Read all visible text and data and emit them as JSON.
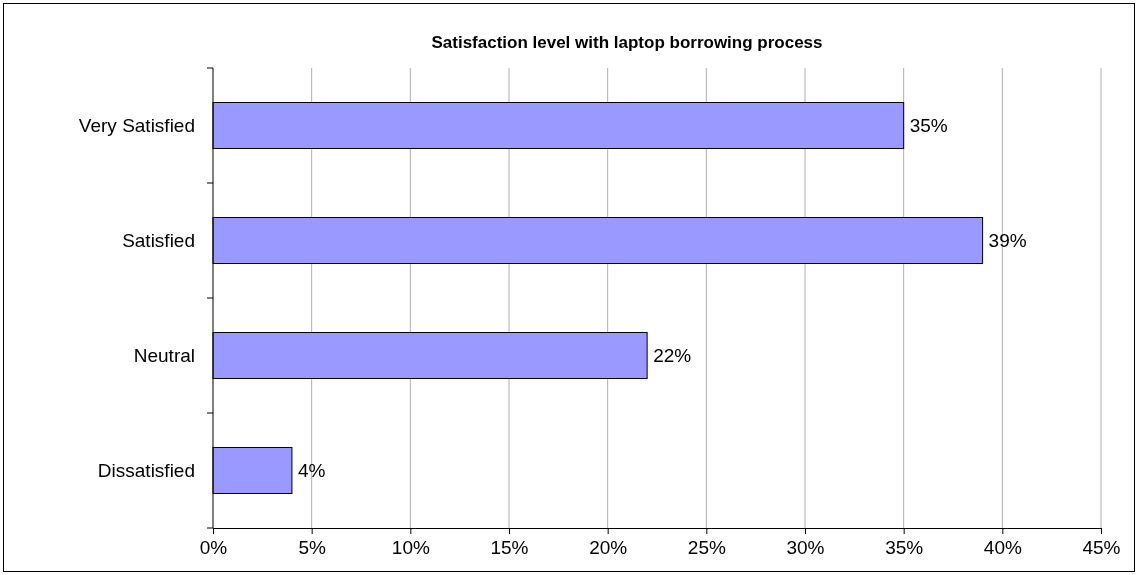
{
  "chart_data": {
    "type": "bar",
    "orientation": "horizontal",
    "title": "Satisfaction level with laptop borrowing process",
    "categories": [
      "Very Satisfied",
      "Satisfied",
      "Neutral",
      "Dissatisfied"
    ],
    "values": [
      35,
      39,
      22,
      4
    ],
    "color": "#9999ff",
    "xlim": [
      0,
      45
    ],
    "xticks": [
      {
        "value": 0,
        "label": "0%"
      },
      {
        "value": 5,
        "label": "5%"
      },
      {
        "value": 10,
        "label": "10%"
      },
      {
        "value": 15,
        "label": "15%"
      },
      {
        "value": 20,
        "label": "20%"
      },
      {
        "value": 25,
        "label": "25%"
      },
      {
        "value": 30,
        "label": "30%"
      },
      {
        "value": 35,
        "label": "35%"
      },
      {
        "value": 40,
        "label": "40%"
      },
      {
        "value": 45,
        "label": "45%"
      }
    ],
    "value_labels": [
      "35%",
      "39%",
      "22%",
      "4%"
    ],
    "grid": "x"
  }
}
